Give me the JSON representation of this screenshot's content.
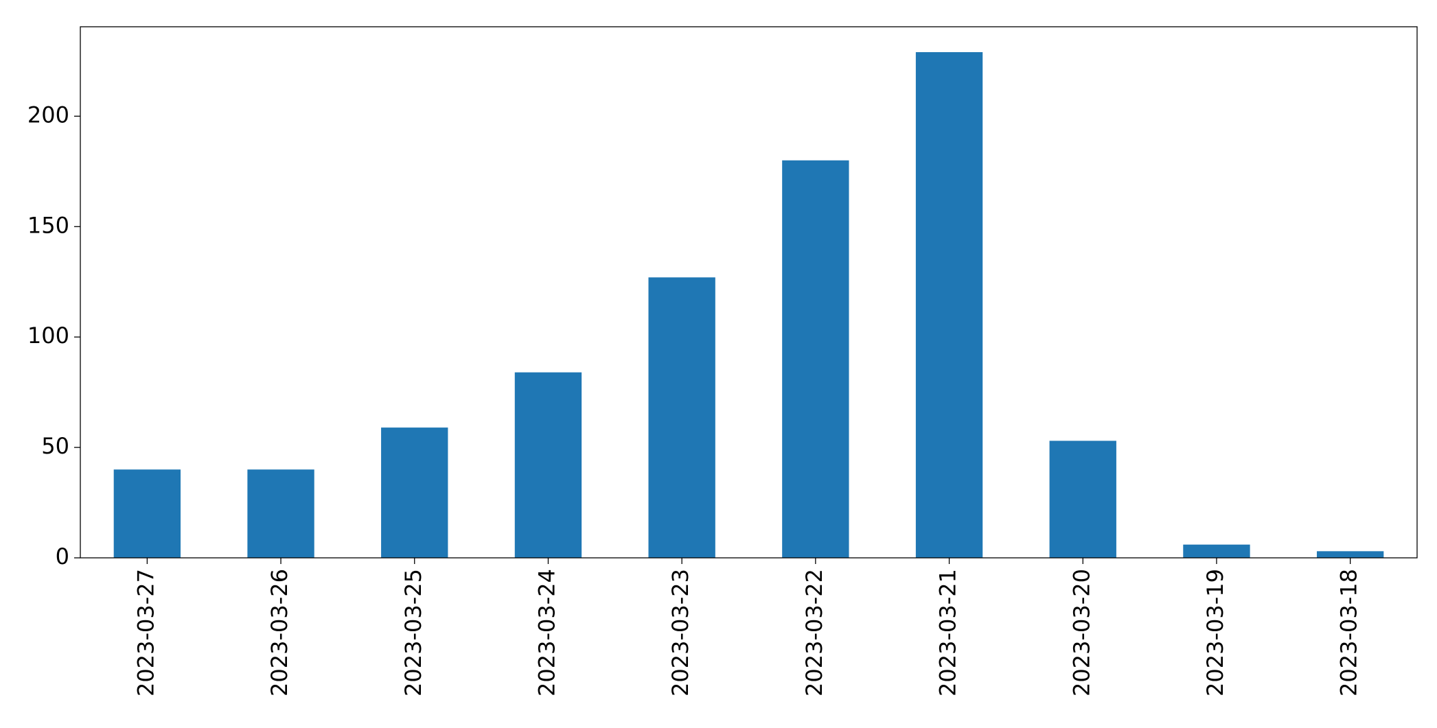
{
  "chart_data": {
    "type": "bar",
    "categories": [
      "2023-03-27",
      "2023-03-26",
      "2023-03-25",
      "2023-03-24",
      "2023-03-23",
      "2023-03-22",
      "2023-03-21",
      "2023-03-20",
      "2023-03-19",
      "2023-03-18"
    ],
    "values": [
      40,
      40,
      59,
      84,
      127,
      180,
      229,
      53,
      6,
      3
    ],
    "color": "#1f77b4",
    "ylim": [
      0,
      240.5
    ],
    "yticks": [
      0,
      50,
      100,
      150,
      200
    ],
    "grid": false
  }
}
